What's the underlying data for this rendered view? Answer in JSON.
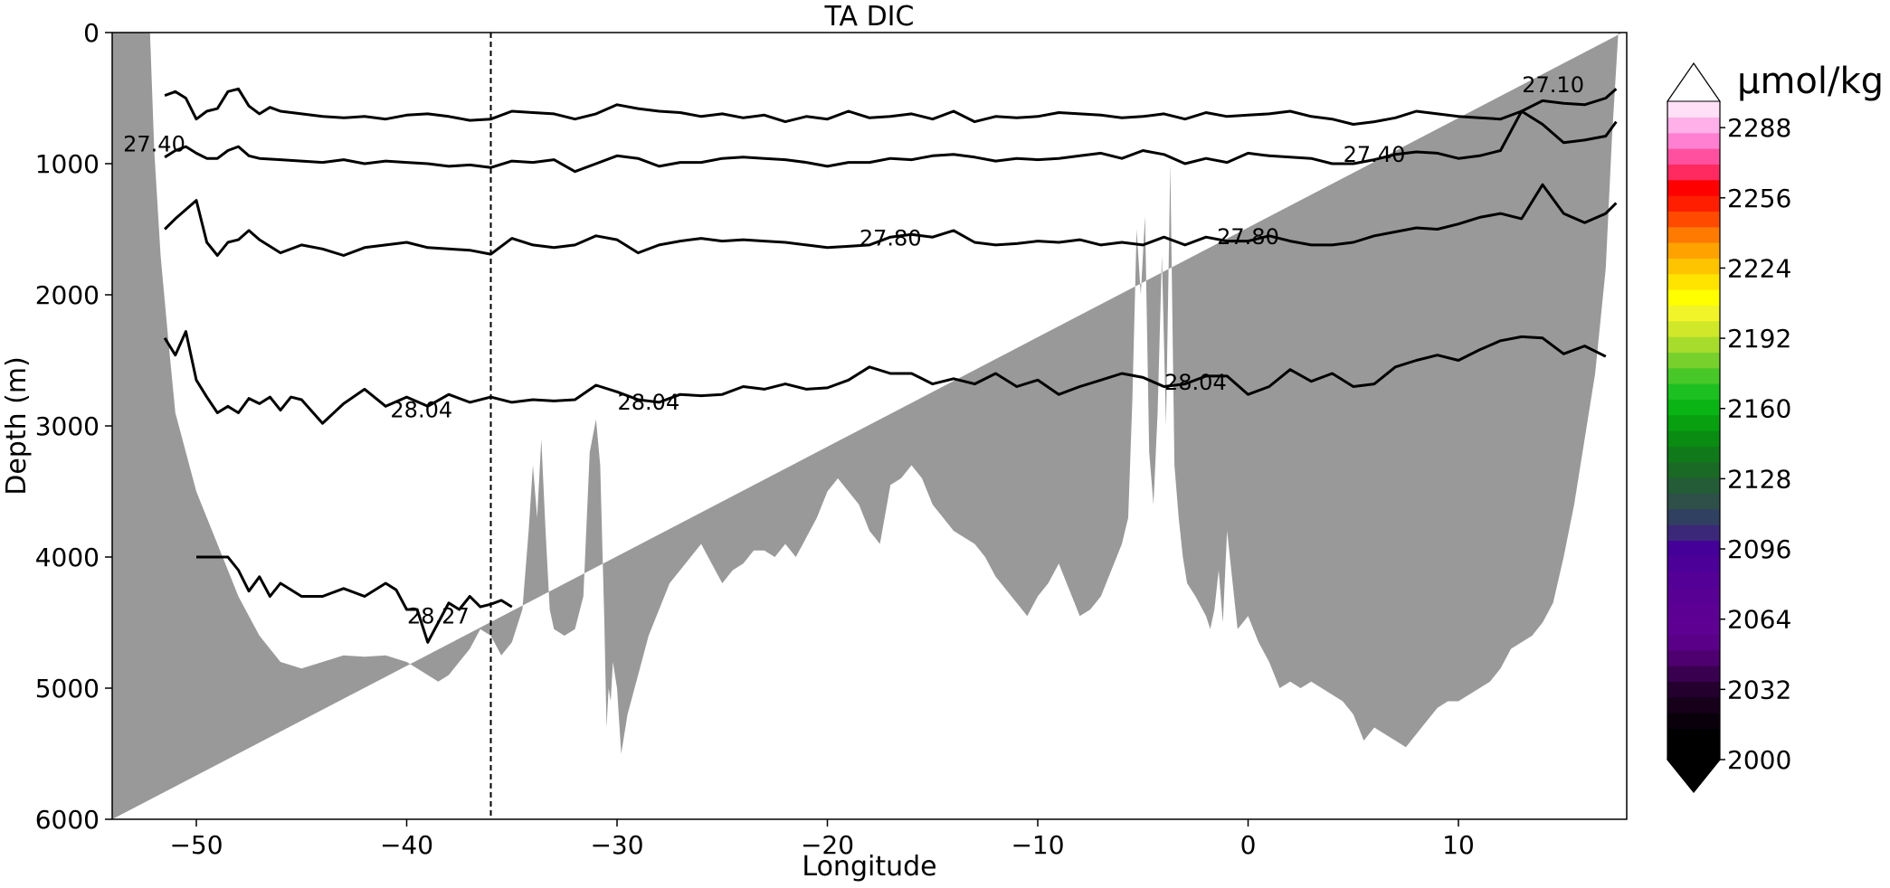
{
  "chart_data": {
    "type": "line",
    "title": "TA DIC",
    "xlabel": "Longitude",
    "ylabel": "Depth (m)",
    "xlim": [
      -54,
      18
    ],
    "ylim": [
      6000,
      0
    ],
    "y_inverted": true,
    "x_ticks": [
      -50,
      -40,
      -30,
      -20,
      -10,
      0,
      10
    ],
    "x_tick_labels": [
      "−50",
      "−40",
      "−30",
      "−20",
      "−10",
      "0",
      "10"
    ],
    "y_ticks": [
      0,
      1000,
      2000,
      3000,
      4000,
      5000,
      6000
    ],
    "y_tick_labels": [
      "0",
      "1000",
      "2000",
      "3000",
      "4000",
      "5000",
      "6000"
    ],
    "vertical_line_x": -36,
    "bathymetry_color": "#999999",
    "bathymetry": {
      "x": [
        -54,
        -52.2,
        -52,
        -51.7,
        -51.3,
        -51,
        -50.5,
        -50,
        -49.5,
        -49,
        -48.5,
        -48,
        -47.5,
        -47,
        -46,
        -45,
        -44,
        -43,
        -42,
        -41,
        -40,
        -39,
        -38.5,
        -38,
        -37.5,
        -37,
        -36.5,
        -36,
        -35.5,
        -35,
        -34.5,
        -34.2,
        -34,
        -33.8,
        -33.6,
        -33.4,
        -33.2,
        -33,
        -32.5,
        -32,
        -31.6,
        -31.3,
        -31,
        -30.8,
        -30.6,
        -30.5,
        -30.4,
        -30.3,
        -30.2,
        -30.0,
        -29.8,
        -29.5,
        -29,
        -28.5,
        -28,
        -27.5,
        -27,
        -26.5,
        -26,
        -25.5,
        -25,
        -24.5,
        -24,
        -23.5,
        -23,
        -22.5,
        -22,
        -21.5,
        -21,
        -20.5,
        -20,
        -19.5,
        -19,
        -18.5,
        -18,
        -17.5,
        -17,
        -16.5,
        -16,
        -15.5,
        -15,
        -14.5,
        -14,
        -13.5,
        -13,
        -12.5,
        -12,
        -11.5,
        -11,
        -10.5,
        -10,
        -9.5,
        -9,
        -8.5,
        -8,
        -7.5,
        -7,
        -6.5,
        -6,
        -5.7,
        -5.5,
        -5.3,
        -5.1,
        -4.9,
        -4.7,
        -4.5,
        -4.3,
        -4.1,
        -3.9,
        -3.7,
        -3.5,
        -3.3,
        -3.1,
        -2.9,
        -2.5,
        -2,
        -1.8,
        -1.6,
        -1.4,
        -1.2,
        -1,
        -0.8,
        -0.5,
        0,
        0.5,
        1,
        1.5,
        2,
        2.5,
        3,
        3.5,
        4,
        4.5,
        5,
        5.5,
        6,
        6.5,
        7,
        7.5,
        8,
        8.5,
        9,
        9.5,
        10,
        10.5,
        11,
        11.5,
        12,
        12.5,
        13,
        13.5,
        14,
        14.5,
        15,
        15.5,
        16,
        16.5,
        17,
        17.3,
        17.6,
        17.8,
        18
      ],
      "depth": [
        0,
        0,
        900,
        1700,
        2400,
        2900,
        3200,
        3500,
        3700,
        3900,
        4100,
        4300,
        4450,
        4600,
        4800,
        4850,
        4800,
        4750,
        4760,
        4750,
        4800,
        4900,
        4950,
        4900,
        4800,
        4700,
        4550,
        4600,
        4750,
        4650,
        4400,
        3800,
        3300,
        3700,
        3100,
        3800,
        4400,
        4550,
        4600,
        4550,
        4300,
        3200,
        2950,
        3300,
        4500,
        5300,
        5000,
        5100,
        4800,
        5000,
        5500,
        5200,
        4900,
        4600,
        4400,
        4200,
        4100,
        4000,
        3900,
        4050,
        4200,
        4100,
        4050,
        3950,
        3950,
        4000,
        3900,
        4000,
        3850,
        3700,
        3500,
        3400,
        3500,
        3600,
        3800,
        3900,
        3450,
        3400,
        3300,
        3400,
        3600,
        3700,
        3800,
        3850,
        3900,
        4000,
        4150,
        4250,
        4350,
        4450,
        4300,
        4200,
        4050,
        4250,
        4450,
        4400,
        4300,
        4100,
        3900,
        3700,
        2800,
        1500,
        2000,
        1400,
        3200,
        3600,
        2900,
        1700,
        3000,
        1000,
        3300,
        3700,
        4000,
        4200,
        4300,
        4450,
        4550,
        4400,
        4100,
        4500,
        3800,
        4100,
        4550,
        4450,
        4650,
        4800,
        5000,
        4950,
        5000,
        4950,
        5000,
        5050,
        5100,
        5200,
        5400,
        5300,
        5350,
        5400,
        5450,
        5350,
        5250,
        5150,
        5100,
        5100,
        5050,
        5000,
        4950,
        4850,
        4700,
        4650,
        4600,
        4500,
        4350,
        4000,
        3600,
        3100,
        2600,
        1800,
        800,
        0,
        0
      ]
    },
    "series": [
      {
        "label": "27.10",
        "x": [
          -51.5,
          -51,
          -50.5,
          -50,
          -49.5,
          -49,
          -48.5,
          -48,
          -47.5,
          -47,
          -46.5,
          -46,
          -45,
          -44,
          -43,
          -42,
          -41,
          -40,
          -39,
          -38,
          -37,
          -36,
          -35,
          -34,
          -33,
          -32,
          -31,
          -30,
          -29,
          -28,
          -27,
          -26,
          -25,
          -24,
          -23,
          -22,
          -21,
          -20,
          -19,
          -18,
          -17,
          -16,
          -15,
          -14,
          -13,
          -12,
          -11,
          -10,
          -9,
          -8,
          -7,
          -6,
          -5,
          -4,
          -3,
          -2,
          -1,
          0,
          1,
          2,
          3,
          4,
          5,
          6,
          7,
          8,
          9,
          10,
          11,
          12,
          13,
          14,
          15,
          16,
          17,
          17.5
        ],
        "y": [
          480,
          450,
          500,
          660,
          600,
          580,
          450,
          430,
          560,
          620,
          570,
          600,
          620,
          640,
          650,
          640,
          660,
          630,
          620,
          640,
          670,
          660,
          600,
          610,
          620,
          660,
          620,
          550,
          580,
          600,
          610,
          640,
          620,
          650,
          630,
          680,
          640,
          660,
          600,
          650,
          640,
          620,
          660,
          600,
          680,
          640,
          650,
          640,
          610,
          620,
          630,
          650,
          640,
          620,
          660,
          610,
          640,
          630,
          620,
          600,
          640,
          660,
          700,
          680,
          650,
          600,
          620,
          640,
          650,
          660,
          600,
          520,
          540,
          550,
          500,
          430
        ]
      },
      {
        "label": "27.40",
        "x": [
          -51.5,
          -51,
          -50.5,
          -50,
          -49.5,
          -49,
          -48.5,
          -48,
          -47.5,
          -47,
          -46,
          -45,
          -44,
          -43,
          -42,
          -41,
          -40,
          -39,
          -38,
          -37,
          -36,
          -35,
          -34,
          -33,
          -32,
          -31,
          -30,
          -29,
          -28,
          -27,
          -26,
          -25,
          -24,
          -23,
          -22,
          -21,
          -20,
          -19,
          -18,
          -17,
          -16,
          -15,
          -14,
          -13,
          -12,
          -11,
          -10,
          -9,
          -8,
          -7,
          -6,
          -5,
          -4,
          -3,
          -2,
          -1,
          0,
          1,
          2,
          3,
          4,
          5,
          6,
          7,
          8,
          9,
          10,
          11,
          12,
          13,
          14,
          15,
          16,
          17,
          17.5
        ],
        "y": [
          950,
          900,
          870,
          920,
          960,
          960,
          900,
          870,
          940,
          960,
          970,
          980,
          990,
          970,
          1000,
          980,
          990,
          1000,
          1020,
          1010,
          1030,
          980,
          990,
          970,
          1060,
          1000,
          940,
          960,
          1020,
          990,
          990,
          960,
          950,
          960,
          970,
          990,
          1020,
          990,
          990,
          960,
          970,
          940,
          930,
          950,
          980,
          960,
          970,
          960,
          940,
          920,
          960,
          900,
          930,
          1000,
          960,
          990,
          920,
          940,
          950,
          960,
          1000,
          1000,
          970,
          930,
          910,
          920,
          960,
          940,
          900,
          600,
          700,
          840,
          820,
          790,
          680
        ]
      },
      {
        "label": "27.80",
        "x": [
          -51.5,
          -51,
          -50.5,
          -50,
          -49.5,
          -49,
          -48.5,
          -48,
          -47.5,
          -47,
          -46,
          -45,
          -44,
          -43,
          -42,
          -41,
          -40,
          -39,
          -38,
          -37,
          -36,
          -35,
          -34,
          -33,
          -32,
          -31,
          -30,
          -29,
          -28,
          -27,
          -26,
          -25,
          -24,
          -23,
          -22,
          -21,
          -20,
          -19,
          -18,
          -17,
          -16,
          -15,
          -14,
          -13,
          -12,
          -11,
          -10,
          -9,
          -8,
          -7,
          -6,
          -5,
          -4,
          -3,
          -2,
          -1,
          0,
          1,
          2,
          3,
          4,
          5,
          6,
          7,
          8,
          9,
          10,
          11,
          12,
          13,
          14,
          15,
          16,
          17,
          17.5
        ],
        "y": [
          1500,
          1420,
          1350,
          1280,
          1600,
          1700,
          1600,
          1580,
          1510,
          1580,
          1680,
          1620,
          1650,
          1700,
          1640,
          1620,
          1600,
          1640,
          1650,
          1660,
          1690,
          1570,
          1620,
          1640,
          1620,
          1550,
          1580,
          1680,
          1620,
          1590,
          1570,
          1590,
          1580,
          1590,
          1600,
          1620,
          1640,
          1630,
          1620,
          1560,
          1540,
          1560,
          1510,
          1600,
          1620,
          1610,
          1590,
          1600,
          1580,
          1620,
          1600,
          1620,
          1560,
          1620,
          1560,
          1590,
          1590,
          1550,
          1590,
          1620,
          1620,
          1600,
          1550,
          1520,
          1490,
          1500,
          1460,
          1410,
          1380,
          1420,
          1160,
          1380,
          1450,
          1380,
          1300
        ]
      },
      {
        "label": "28.04",
        "x": [
          -51.5,
          -51,
          -50.5,
          -50,
          -49.5,
          -49,
          -48.5,
          -48,
          -47.5,
          -47,
          -46.5,
          -46,
          -45.5,
          -45,
          -44,
          -43,
          -42,
          -41,
          -40,
          -39,
          -38,
          -37,
          -36,
          -35,
          -34,
          -33,
          -32,
          -31,
          -30,
          -29,
          -28,
          -27,
          -26,
          -25,
          -24,
          -23,
          -22,
          -21,
          -20,
          -19,
          -18,
          -17,
          -16,
          -15,
          -14,
          -13,
          -12,
          -11,
          -10,
          -9,
          -8,
          -7,
          -6,
          -5,
          -4,
          -3,
          -2,
          -1,
          0,
          1,
          2,
          3,
          4,
          5,
          6,
          7,
          8,
          9,
          10,
          11,
          12,
          13,
          14,
          15,
          16,
          17
        ],
        "y": [
          2330,
          2460,
          2280,
          2650,
          2780,
          2900,
          2850,
          2900,
          2790,
          2830,
          2780,
          2880,
          2780,
          2800,
          2980,
          2830,
          2720,
          2850,
          2780,
          2850,
          2760,
          2820,
          2780,
          2820,
          2800,
          2810,
          2800,
          2690,
          2740,
          2800,
          2820,
          2760,
          2770,
          2760,
          2700,
          2720,
          2680,
          2720,
          2710,
          2650,
          2550,
          2600,
          2600,
          2680,
          2640,
          2680,
          2600,
          2700,
          2650,
          2760,
          2700,
          2650,
          2600,
          2630,
          2700,
          2680,
          2620,
          2620,
          2760,
          2700,
          2570,
          2660,
          2600,
          2700,
          2680,
          2550,
          2500,
          2460,
          2500,
          2420,
          2350,
          2320,
          2330,
          2450,
          2390,
          2470
        ]
      },
      {
        "label": "28.27",
        "x": [
          -50,
          -49.5,
          -49,
          -48.5,
          -48,
          -47.5,
          -47,
          -46.5,
          -46,
          -45,
          -44,
          -43,
          -42,
          -41,
          -40.5,
          -40,
          -39.5,
          -39,
          -38.5,
          -38,
          -37.5,
          -37,
          -36.5,
          -36,
          -35.5,
          -35
        ],
        "y": [
          4000,
          4000,
          4000,
          4000,
          4100,
          4260,
          4150,
          4300,
          4200,
          4300,
          4300,
          4240,
          4300,
          4200,
          4250,
          4400,
          4400,
          4650,
          4500,
          4350,
          4400,
          4300,
          4380,
          4360,
          4330,
          4380
        ]
      }
    ],
    "contour_labels": [
      {
        "text": "27.10",
        "x": 14.5,
        "y": 400
      },
      {
        "text": "27.40",
        "x": -52,
        "y": 850
      },
      {
        "text": "27.40",
        "x": 6,
        "y": 930
      },
      {
        "text": "27.80",
        "x": -17,
        "y": 1570
      },
      {
        "text": "27.80",
        "x": 0,
        "y": 1560
      },
      {
        "text": "28.04",
        "x": -39.3,
        "y": 2880
      },
      {
        "text": "28.04",
        "x": -28.5,
        "y": 2820
      },
      {
        "text": "28.04",
        "x": -2.5,
        "y": 2670
      },
      {
        "text": "28.27",
        "x": -38.5,
        "y": 4450
      }
    ],
    "colorbar": {
      "unit": "µmol/kg",
      "min": 2000,
      "max": 2300,
      "extend": "both",
      "ticks": [
        2000,
        2032,
        2064,
        2096,
        2128,
        2160,
        2192,
        2224,
        2256,
        2288
      ],
      "tick_labels": [
        "2000",
        "2032",
        "2064",
        "2096",
        "2128",
        "2160",
        "2192",
        "2224",
        "2256",
        "2288"
      ],
      "colors": [
        "#000000",
        "#000000",
        "#0a000c",
        "#16001a",
        "#24002e",
        "#3a0050",
        "#4e0070",
        "#5a0088",
        "#5e0092",
        "#5c0094",
        "#580094",
        "#540096",
        "#4c0098",
        "#440098",
        "#3c2878",
        "#304060",
        "#2e5048",
        "#245c38",
        "#1a6a26",
        "#107a1a",
        "#0a8c12",
        "#08a010",
        "#0ab414",
        "#1cc020",
        "#48c828",
        "#78d02c",
        "#a8dc2c",
        "#d0e82a",
        "#f0f428",
        "#ffff00",
        "#ffe400",
        "#ffc400",
        "#ffa200",
        "#ff7a00",
        "#ff4a00",
        "#ff1e00",
        "#ff0000",
        "#ff2a60",
        "#ff50a0",
        "#ff80d0",
        "#ffb0e8",
        "#ffe0f6"
      ],
      "over_color": "#ffffff",
      "under_color": "#000000"
    }
  }
}
